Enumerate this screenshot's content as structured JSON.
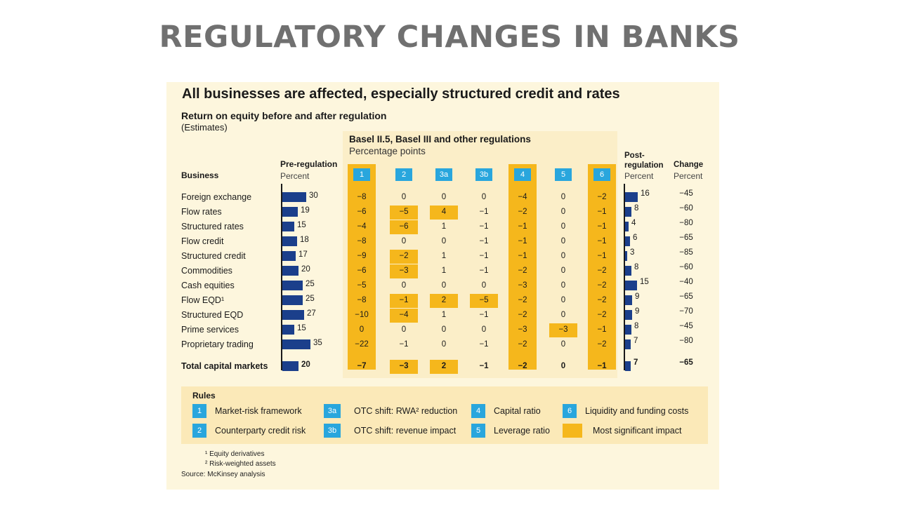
{
  "slide": {
    "title": "REGULATORY CHANGES IN BANKS"
  },
  "chart_data": {
    "type": "table",
    "title": "All businesses are affected, especially structured credit and rates",
    "subtitle": "Return on equity before and after regulation",
    "note": "(Estimates)",
    "basel_title": "Basel II.5, Basel III and other regulations",
    "basel_unit": "Percentage points",
    "business_header": "Business",
    "pre_header": "Pre-regulation",
    "pre_unit": "Percent",
    "post_header_1": "Post-",
    "post_header_2": "regulation",
    "post_unit": "Percent",
    "change_header": "Change",
    "change_unit": "Percent",
    "rule_columns": [
      "1",
      "2",
      "3a",
      "3b",
      "4",
      "5",
      "6"
    ],
    "rows": [
      {
        "business": "Foreign exchange",
        "pre": "30",
        "impacts": [
          "−8",
          "0",
          "0",
          "0",
          "−4",
          "0",
          "−2"
        ],
        "post": "16",
        "change": "−45"
      },
      {
        "business": "Flow rates",
        "pre": "19",
        "impacts": [
          "−6",
          "−5",
          "4",
          "−1",
          "−2",
          "0",
          "−1"
        ],
        "post": "8",
        "change": "−60"
      },
      {
        "business": "Structured rates",
        "pre": "15",
        "impacts": [
          "−4",
          "−6",
          "1",
          "−1",
          "−1",
          "0",
          "−1"
        ],
        "post": "4",
        "change": "−80"
      },
      {
        "business": "Flow credit",
        "pre": "18",
        "impacts": [
          "−8",
          "0",
          "0",
          "−1",
          "−1",
          "0",
          "−1"
        ],
        "post": "6",
        "change": "−65"
      },
      {
        "business": "Structured credit",
        "pre": "17",
        "impacts": [
          "−9",
          "−2",
          "1",
          "−1",
          "−1",
          "0",
          "−1"
        ],
        "post": "3",
        "change": "−85"
      },
      {
        "business": "Commodities",
        "pre": "20",
        "impacts": [
          "−6",
          "−3",
          "1",
          "−1",
          "−2",
          "0",
          "−2"
        ],
        "post": "8",
        "change": "−60"
      },
      {
        "business": "Cash equities",
        "pre": "25",
        "impacts": [
          "−5",
          "0",
          "0",
          "0",
          "−3",
          "0",
          "−2"
        ],
        "post": "15",
        "change": "−40"
      },
      {
        "business": "Flow EQD¹",
        "pre": "25",
        "impacts": [
          "−8",
          "−1",
          "2",
          "−5",
          "−2",
          "0",
          "−2"
        ],
        "post": "9",
        "change": "−65"
      },
      {
        "business": "Structured EQD",
        "pre": "27",
        "impacts": [
          "−10",
          "−4",
          "1",
          "−1",
          "−2",
          "0",
          "−2"
        ],
        "post": "9",
        "change": "−70"
      },
      {
        "business": "Prime services",
        "pre": "15",
        "impacts": [
          "0",
          "0",
          "0",
          "0",
          "−3",
          "−3",
          "−1"
        ],
        "post": "8",
        "change": "−45"
      },
      {
        "business": "Proprietary trading",
        "pre": "35",
        "impacts": [
          "−22",
          "−1",
          "0",
          "−1",
          "−2",
          "0",
          "−2"
        ],
        "post": "7",
        "change": "−80"
      }
    ],
    "total": {
      "business": "Total capital markets",
      "pre": "20",
      "impacts": [
        "−7",
        "−3",
        "2",
        "−1",
        "−2",
        "0",
        "−1"
      ],
      "post": "7",
      "change": "−65"
    },
    "most_significant_columns": [
      "1",
      "4",
      "6"
    ],
    "highlighted_cells": [
      {
        "row": 1,
        "col": 1
      },
      {
        "row": 1,
        "col": 2
      },
      {
        "row": 2,
        "col": 1
      },
      {
        "row": 4,
        "col": 1
      },
      {
        "row": 5,
        "col": 1
      },
      {
        "row": 7,
        "col": 1
      },
      {
        "row": 7,
        "col": 2
      },
      {
        "row": 7,
        "col": 3
      },
      {
        "row": 8,
        "col": 1
      },
      {
        "row": 9,
        "col": 5
      },
      {
        "row": 11,
        "col": 1
      },
      {
        "row": 11,
        "col": 2
      }
    ],
    "legend": {
      "title": "Rules",
      "items": [
        {
          "key": "1",
          "label": "Market-risk framework"
        },
        {
          "key": "2",
          "label": "Counterparty credit risk"
        },
        {
          "key": "3a",
          "label": "OTC shift: RWA² reduction"
        },
        {
          "key": "3b",
          "label": "OTC shift: revenue impact"
        },
        {
          "key": "4",
          "label": "Capital ratio"
        },
        {
          "key": "5",
          "label": "Leverage ratio"
        },
        {
          "key": "6",
          "label": "Liquidity and funding costs"
        },
        {
          "key": "",
          "label": "Most significant impact"
        }
      ]
    },
    "footnotes": [
      "¹ Equity derivatives",
      "² Risk-weighted assets"
    ],
    "source": "Source: McKinsey analysis"
  },
  "colors": {
    "bar": "#1b3f8b",
    "highlight": "#f5b71c",
    "rule_box": "#29a6dd",
    "panel": "#fdf6dd"
  }
}
